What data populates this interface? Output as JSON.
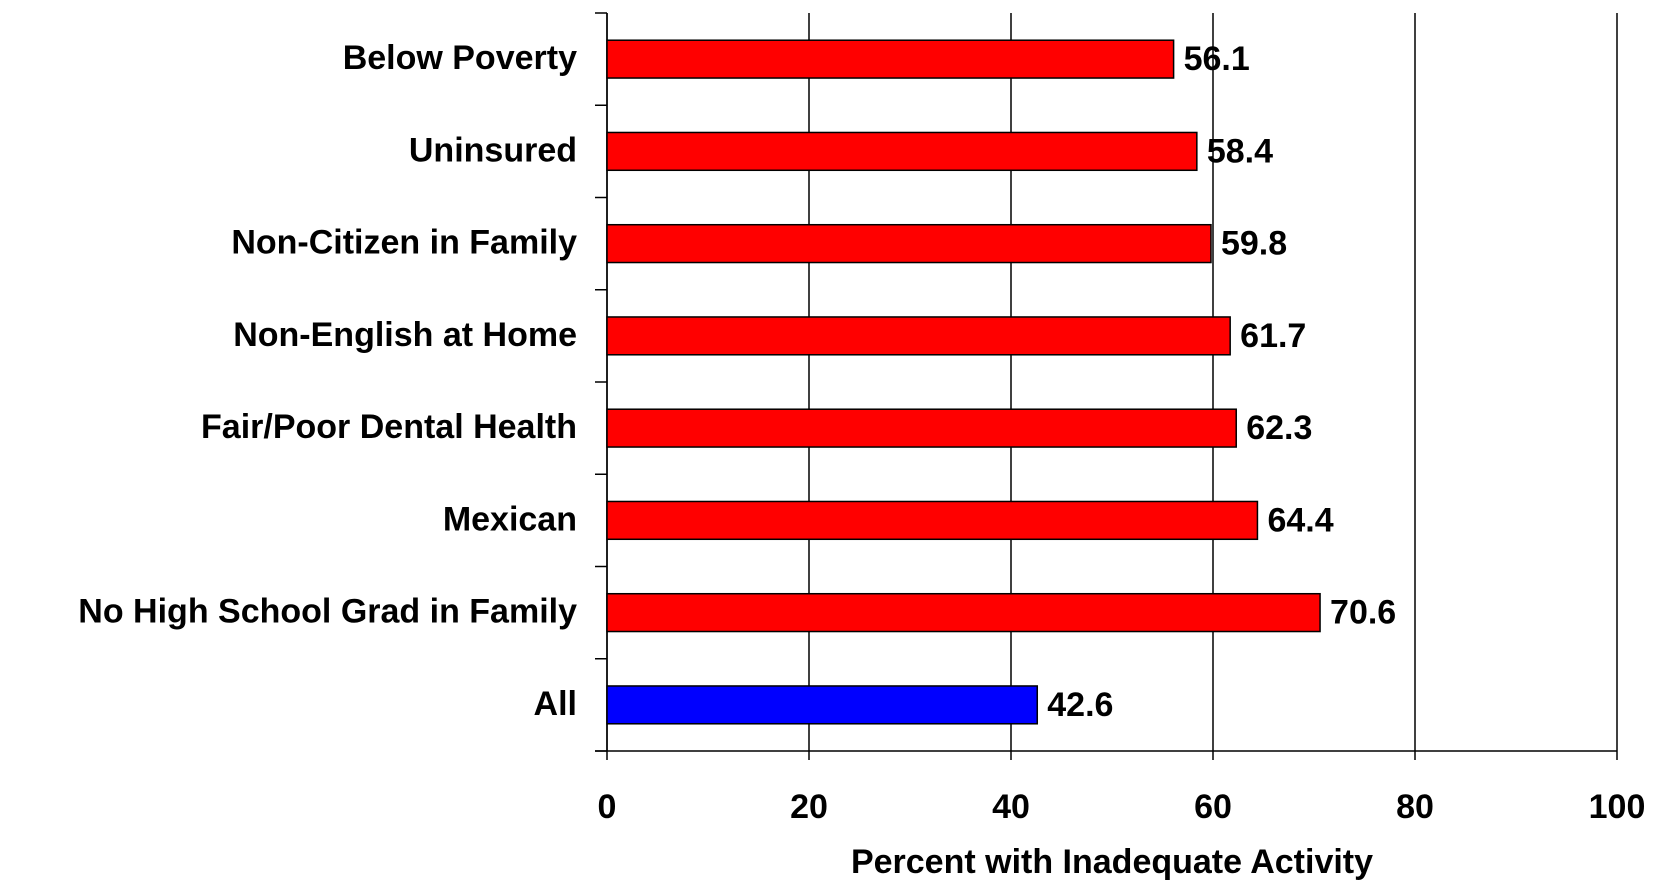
{
  "chart_data": {
    "type": "bar",
    "orientation": "horizontal",
    "categories": [
      "Below Poverty",
      "Uninsured",
      "Non-Citizen in Family",
      "Non-English at Home",
      "Fair/Poor Dental Health",
      "Mexican",
      "No High School Grad in Family",
      "All"
    ],
    "values": [
      56.1,
      58.4,
      59.8,
      61.7,
      62.3,
      64.4,
      70.6,
      42.6
    ],
    "colors": [
      "#ff0000",
      "#ff0000",
      "#ff0000",
      "#ff0000",
      "#ff0000",
      "#ff0000",
      "#ff0000",
      "#0000ff"
    ],
    "xlabel": "Percent with Inadequate Activity",
    "xlim": [
      0,
      100
    ],
    "xticks": [
      0,
      20,
      40,
      60,
      80,
      100
    ],
    "grid": true
  }
}
